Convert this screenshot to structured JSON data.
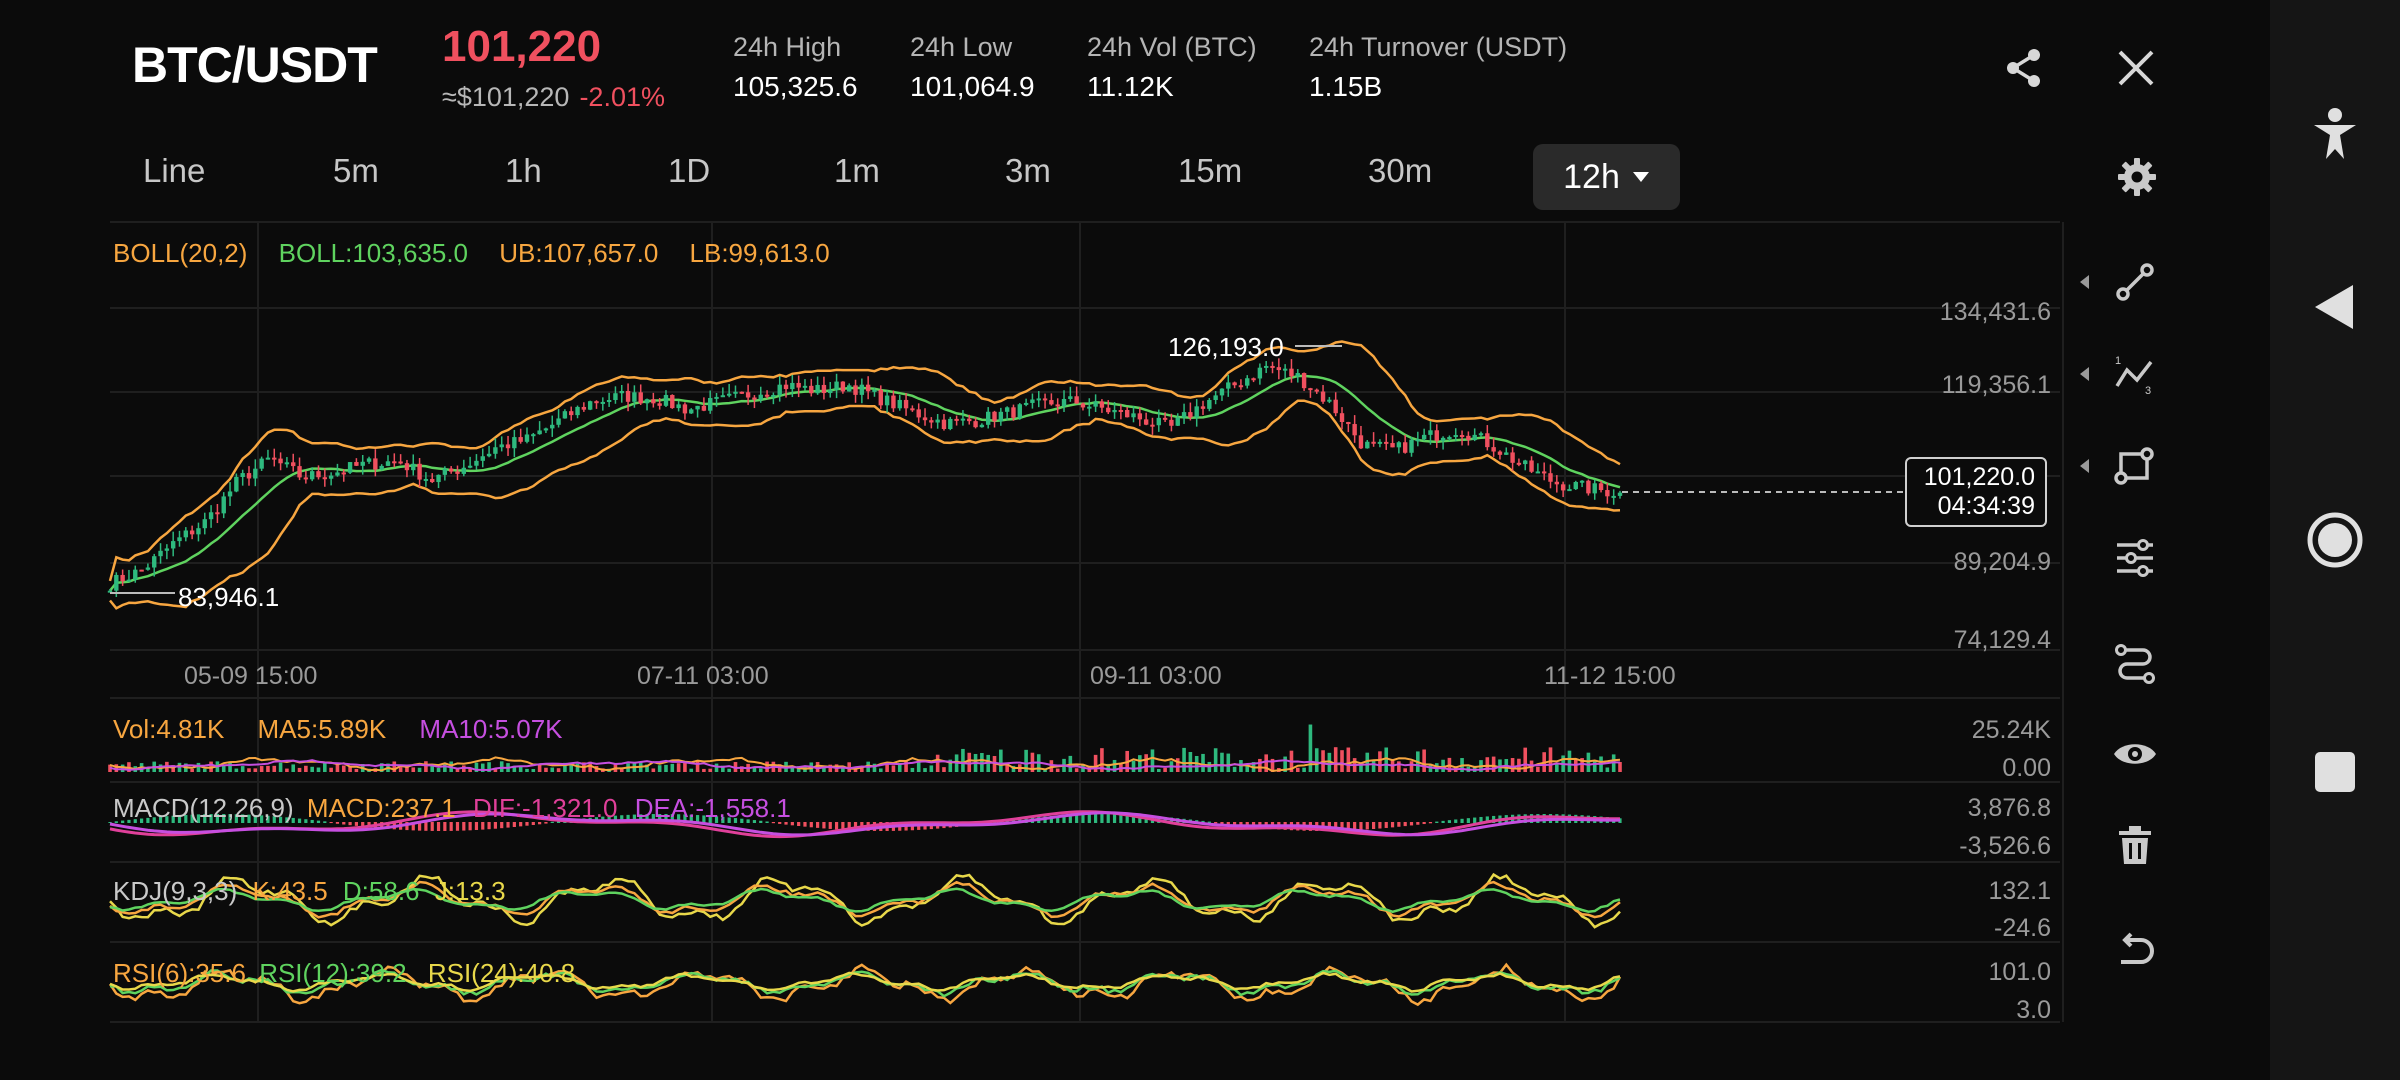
{
  "header": {
    "pair": "BTC/USDT",
    "price": "101,220",
    "usd_price": "≈$101,220",
    "change": "-2.01%",
    "stats": [
      {
        "label": "24h High",
        "value": "105,325.6"
      },
      {
        "label": "24h Low",
        "value": "101,064.9"
      },
      {
        "label": "24h Vol (BTC)",
        "value": "11.12K"
      },
      {
        "label": "24h Turnover (USDT)",
        "value": "1.15B"
      }
    ],
    "share_icon": "share-icon",
    "close_icon": "close-icon"
  },
  "timeframes": {
    "tabs": [
      "Line",
      "5m",
      "1h",
      "1D",
      "1m",
      "3m",
      "15m",
      "30m"
    ],
    "active": "12h",
    "settings_icon": "gear-icon"
  },
  "main_chart": {
    "boll_label": "BOLL(20,2)",
    "boll_value": "BOLL:103,635.0",
    "ub": "UB:107,657.0",
    "lb": "LB:99,613.0",
    "y_ticks": [
      "134,431.6",
      "119,356.1",
      "89,204.9",
      "74,129.4"
    ],
    "x_ticks": [
      "05-09 15:00",
      "07-11 03:00",
      "09-11 03:00",
      "11-12 15:00"
    ],
    "high_marker": "126,193.0",
    "low_marker": "83,946.1",
    "last_price_box": "101,220.0",
    "countdown": "04:34:39"
  },
  "volume_panel": {
    "vol": "Vol:4.81K",
    "ma5": "MA5:5.89K",
    "ma10": "MA10:5.07K",
    "y_top": "25.24K",
    "y_bottom": "0.00"
  },
  "macd_panel": {
    "label": "MACD(12,26,9)",
    "macd": "MACD:237.1",
    "dif": "DIF:-1,321.0",
    "dea": "DEA:-1,558.1",
    "y_top": "3,876.8",
    "y_bottom": "-3,526.6"
  },
  "kdj_panel": {
    "label": "KDJ(9,3,3)",
    "k": "K:43.5",
    "d": "D:58.6",
    "j": "J:13.3",
    "y_top": "132.1",
    "y_bottom": "-24.6"
  },
  "rsi_panel": {
    "rsi6": "RSI(6):35.6",
    "rsi12": "RSI(12):39.2",
    "rsi24": "RSI(24):40.8",
    "y_top": "101.0",
    "y_bottom": "3.0"
  },
  "tools": [
    "line-draw-icon",
    "fib-icon",
    "rectangle-icon",
    "sliders-icon",
    "path-icon",
    "eye-icon",
    "trash-icon",
    "undo-icon"
  ],
  "navbar": [
    "accessibility-icon",
    "back-icon",
    "home-icon",
    "recents-icon"
  ],
  "colors": {
    "red": "#f0505f",
    "green": "#2eb97e",
    "orange": "#f7a640",
    "boll_mid": "#5fd35f",
    "purple": "#c64fe0",
    "pink": "#e0409a",
    "yellow": "#e8d84a"
  },
  "chart_data": {
    "type": "candlestick",
    "timeframe": "12h",
    "x_ticks": [
      "05-09 15:00",
      "07-11 03:00",
      "09-11 03:00",
      "11-12 15:00"
    ],
    "ylim": [
      74129.4,
      134431.6
    ],
    "approx_close_path": [
      84500,
      87000,
      92000,
      96000,
      103500,
      107500,
      104000,
      105000,
      106500,
      107000,
      103500,
      106000,
      109500,
      111000,
      114500,
      118000,
      119000,
      118500,
      116500,
      118000,
      119500,
      121000,
      120000,
      121000,
      118500,
      116000,
      114000,
      114500,
      116000,
      117500,
      118000,
      116500,
      115000,
      113000,
      117500,
      121000,
      124500,
      122500,
      117500,
      110000,
      109000,
      111500,
      113000,
      110000,
      106000,
      103000,
      102000,
      101220
    ],
    "high": 126193.0,
    "low": 83946.1,
    "last": 101220.0
  }
}
